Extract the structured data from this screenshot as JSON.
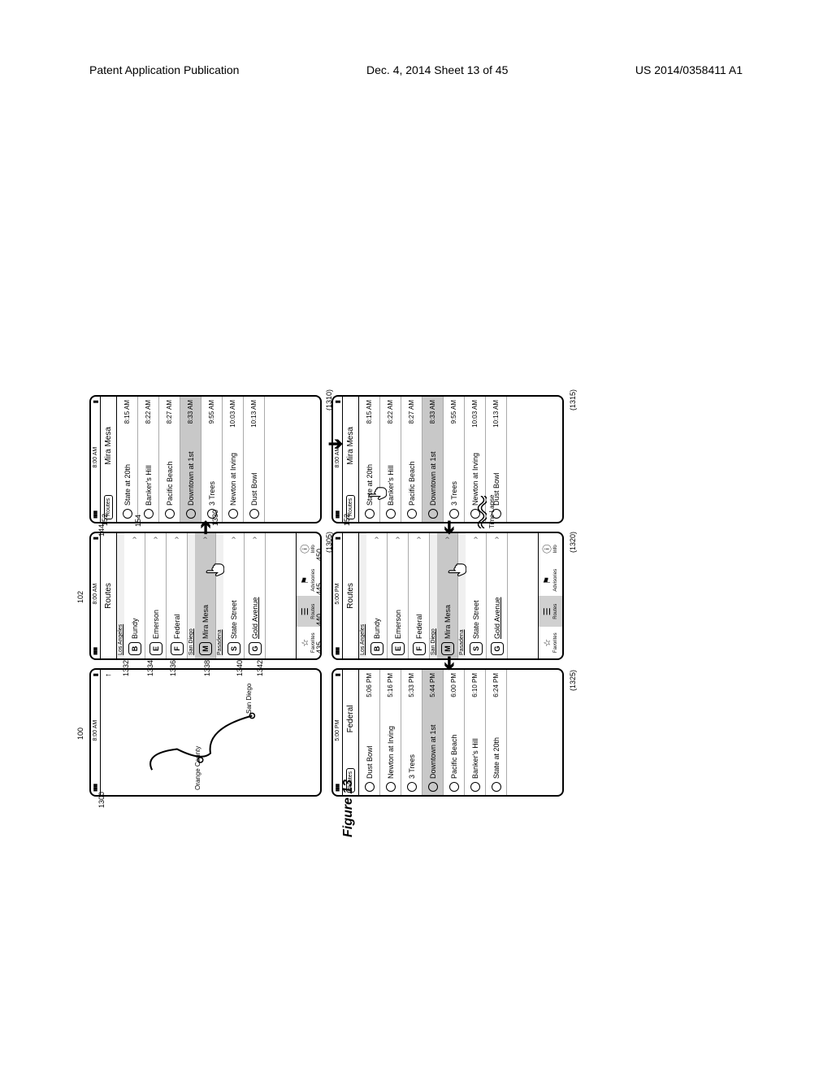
{
  "header": {
    "left": "Patent Application Publication",
    "center": "Dec. 4, 2014  Sheet 13 of 45",
    "right": "US 2014/0358411 A1"
  },
  "figure_caption": "Figure 13",
  "refs": {
    "r100": "100",
    "r102": "102",
    "r144": "144",
    "r152_a": "152",
    "r152_b": "152",
    "r154": "154",
    "r435": "435",
    "r440": "440",
    "r445": "445",
    "r450": "450",
    "r1300": "1300",
    "r1305": "(1305)",
    "r1310": "(1310)",
    "r1315": "(1315)",
    "r1320": "(1320)",
    "r1325": "(1325)",
    "r1330": "1330",
    "r1332": "1332",
    "r1334": "1334",
    "r1336": "1336",
    "r1338": "1338",
    "r1340": "1340",
    "r1342": "1342",
    "time_lapse": "Time Lapse"
  },
  "status_times": {
    "t800": "8:00 AM",
    "t500": "5:00 PM"
  },
  "routes_title": "Routes",
  "routes_btn": "Routes",
  "map": {
    "orange_county": "Orange County",
    "san_diego": "San Diego"
  },
  "sections": {
    "la": "Los Angeles",
    "sd": "San Diego",
    "pasadena": "Pasadena"
  },
  "route_items": {
    "bundy": "Bundy",
    "emerson": "Emerson",
    "federal": "Federal",
    "mira_mesa": "Mira Mesa",
    "state_street": "State Street",
    "gold_avenue": "Gold Avenue"
  },
  "tabs": {
    "favorites": "Favorites",
    "routes": "Routes",
    "advisories": "Advisories",
    "info": "Info"
  },
  "detail_title_mira": "Mira Mesa",
  "detail_title_federal": "Federal",
  "stops_am": [
    {
      "name": "State at 20th",
      "time": "8:15 AM"
    },
    {
      "name": "Banker's Hill",
      "time": "8:22 AM"
    },
    {
      "name": "Pacific Beach",
      "time": "8:27 AM"
    },
    {
      "name": "Downtown at 1st",
      "time": "8:33 AM",
      "sel": true
    },
    {
      "name": "3 Trees",
      "time": "9:55 AM"
    },
    {
      "name": "Newton at Irving",
      "time": "10:03 AM"
    },
    {
      "name": "Dust Bowl",
      "time": "10:13 AM"
    }
  ],
  "stops_pm": [
    {
      "name": "Dust Bowl",
      "time": "5:06 PM"
    },
    {
      "name": "Newton at Irving",
      "time": "5:16 PM"
    },
    {
      "name": "3 Trees",
      "time": "5:33 PM"
    },
    {
      "name": "Downtown at 1st",
      "time": "5:44 PM",
      "sel": true
    },
    {
      "name": "Pacific Beach",
      "time": "6:00 PM"
    },
    {
      "name": "Banker's Hill",
      "time": "6:10 PM"
    },
    {
      "name": "State at 20th",
      "time": "6:24 PM"
    }
  ],
  "letters": {
    "B": "B",
    "E": "E",
    "F": "F",
    "M": "M",
    "S": "S",
    "G": "G"
  }
}
